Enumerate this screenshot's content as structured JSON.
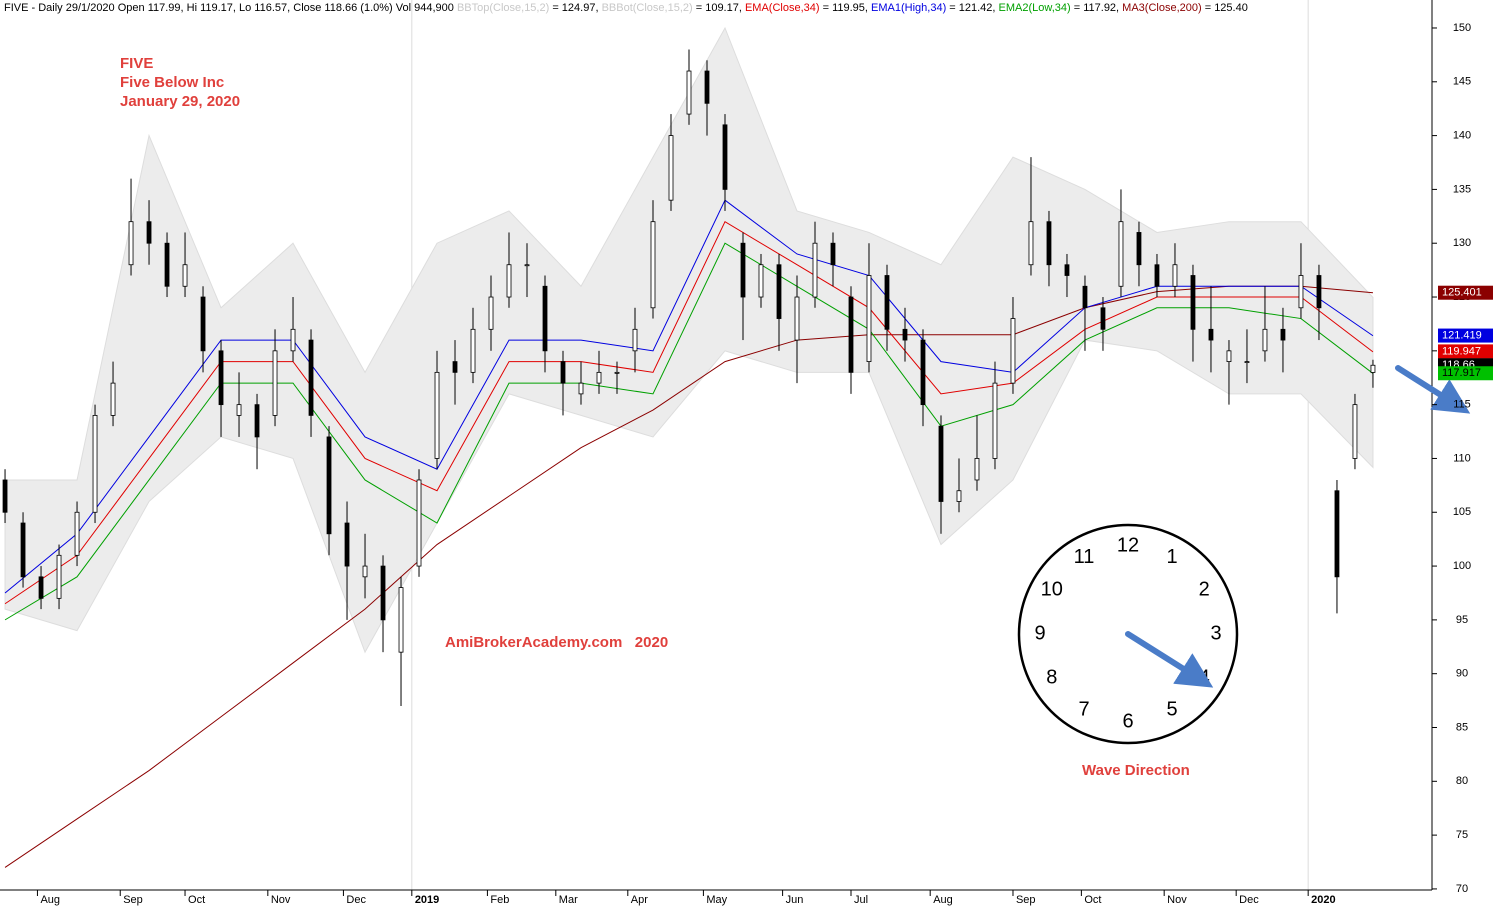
{
  "chart_data": {
    "type": "candlestick",
    "header": [
      {
        "text": "FIVE - Daily 29/1/2020 Open 117.99, Hi 119.17, Lo 116.57, Close 118.66 (1.0%) Vol 944,900 ",
        "color": "#000000"
      },
      {
        "text": "BBTop(Close,15,2)",
        "color": "#c8c8c8"
      },
      {
        "text": " = 124.97, ",
        "color": "#000000"
      },
      {
        "text": "BBBot(Close,15,2)",
        "color": "#c8c8c8"
      },
      {
        "text": " = 109.17, ",
        "color": "#000000"
      },
      {
        "text": "EMA(Close,34)",
        "color": "#e00000"
      },
      {
        "text": " = 119.95, ",
        "color": "#000000"
      },
      {
        "text": "EMA1(High,34)",
        "color": "#0000e0"
      },
      {
        "text": " = 121.42, ",
        "color": "#000000"
      },
      {
        "text": "EMA2(Low,34)",
        "color": "#00a000"
      },
      {
        "text": " = 117.92, ",
        "color": "#000000"
      },
      {
        "text": "MA3(Close,200)",
        "color": "#8b0000"
      },
      {
        "text": " = 125.40",
        "color": "#000000"
      }
    ],
    "annotations": {
      "symbol": "FIVE",
      "company": "Five Below Inc",
      "date": "January 29, 2020",
      "watermark": "AmiBrokerAcademy.com   2020",
      "wave": "Wave Direction",
      "color": "#e0403c"
    },
    "clock": [
      "12",
      "1",
      "2",
      "3",
      "4",
      "5",
      "6",
      "7",
      "8",
      "9",
      "10",
      "11"
    ],
    "xlim": [
      -1.4,
      396.4
    ],
    "ylim": [
      69.9,
      152.6
    ],
    "yticks": [
      70,
      75,
      80,
      85,
      90,
      95,
      100,
      105,
      110,
      115,
      120,
      125,
      130,
      135,
      140,
      145,
      150
    ],
    "xticks": [
      {
        "value": 9,
        "label": "Aug"
      },
      {
        "value": 32,
        "label": "Sep"
      },
      {
        "value": 50,
        "label": "Oct"
      },
      {
        "value": 73,
        "label": "Nov"
      },
      {
        "value": 94,
        "label": "Dec"
      },
      {
        "value": 113,
        "label": "2019",
        "major": true
      },
      {
        "value": 134,
        "label": "Feb"
      },
      {
        "value": 153,
        "label": "Mar"
      },
      {
        "value": 173,
        "label": "Apr"
      },
      {
        "value": 194,
        "label": "May"
      },
      {
        "value": 216,
        "label": "Jun"
      },
      {
        "value": 235,
        "label": "Jul"
      },
      {
        "value": 257,
        "label": "Aug"
      },
      {
        "value": 280,
        "label": "Sep"
      },
      {
        "value": 299,
        "label": "Oct"
      },
      {
        "value": 322,
        "label": "Nov"
      },
      {
        "value": 342,
        "label": "Dec"
      },
      {
        "value": 362,
        "label": "2020",
        "major": true
      }
    ],
    "candles": {
      "x": [
        0,
        5,
        10,
        15,
        20,
        25,
        30,
        35,
        40,
        45,
        50,
        55,
        60,
        65,
        70,
        75,
        80,
        85,
        90,
        95,
        100,
        105,
        110,
        115,
        120,
        125,
        130,
        135,
        140,
        145,
        150,
        155,
        160,
        165,
        170,
        175,
        180,
        185,
        190,
        195,
        200,
        205,
        210,
        215,
        220,
        225,
        230,
        235,
        240,
        245,
        250,
        255,
        260,
        265,
        270,
        275,
        280,
        285,
        290,
        295,
        300,
        305,
        310,
        315,
        320,
        325,
        330,
        335,
        340,
        345,
        350,
        355,
        360,
        365,
        370,
        375,
        380
      ],
      "open": [
        108,
        104,
        99,
        97,
        101,
        105,
        114,
        128,
        132,
        130,
        126,
        125,
        120,
        114,
        115,
        114,
        120,
        121,
        112,
        104,
        99,
        100,
        92,
        100,
        110,
        119,
        118,
        122,
        125,
        128,
        126,
        119,
        116,
        117,
        118,
        120,
        124,
        134,
        142,
        146,
        141,
        130,
        125,
        128,
        121,
        125,
        130,
        125,
        119,
        127,
        122,
        121,
        113,
        106,
        108,
        110,
        117,
        128,
        132,
        128,
        126,
        124,
        126,
        131,
        128,
        126,
        127,
        122,
        119,
        119,
        120,
        122,
        124,
        127,
        107,
        110,
        117.99
      ],
      "high": [
        109,
        105,
        100,
        102,
        106,
        115,
        119,
        136,
        134,
        131,
        131,
        126,
        121,
        118,
        116,
        122,
        125,
        122,
        113,
        106,
        103,
        101,
        99,
        109,
        120,
        121,
        124,
        127,
        131,
        130,
        127,
        120,
        119,
        120,
        119,
        124,
        134,
        142,
        148,
        147,
        142,
        131,
        129,
        129,
        127,
        132,
        131,
        126,
        130,
        128,
        124,
        122,
        114,
        110,
        114,
        119,
        125,
        138,
        133,
        129,
        127,
        125,
        135,
        132,
        129,
        130,
        128,
        126,
        121,
        122,
        126,
        124,
        130,
        128,
        108,
        116,
        119.17
      ],
      "low": [
        104,
        98,
        96,
        96,
        100,
        104,
        113,
        127,
        128,
        125,
        125,
        118,
        112,
        112,
        109,
        113,
        119,
        112,
        101,
        95,
        97,
        92,
        87,
        99,
        109,
        115,
        117,
        120,
        124,
        125,
        118,
        114,
        115,
        116,
        116,
        118,
        123,
        133,
        141,
        140,
        133,
        121,
        124,
        120,
        117,
        124,
        126,
        116,
        118,
        120,
        119,
        113,
        103,
        105,
        107,
        109,
        116,
        127,
        126,
        125,
        120,
        120,
        125,
        126,
        125,
        125,
        119,
        118,
        115,
        117,
        119,
        118,
        123,
        121,
        95.6,
        109,
        116.57
      ],
      "close": [
        105,
        99,
        97,
        101,
        105,
        114,
        117,
        132,
        130,
        126,
        128,
        120,
        115,
        115,
        112,
        120,
        122,
        114,
        103,
        100,
        100,
        95,
        98,
        108,
        118,
        118,
        122,
        125,
        128,
        128,
        120,
        117,
        117,
        118,
        118,
        122,
        132,
        140,
        146,
        143,
        135,
        125,
        128,
        123,
        125,
        130,
        128,
        118,
        127,
        122,
        121,
        115,
        106,
        107,
        110,
        117,
        123,
        132,
        128,
        127,
        124,
        122,
        132,
        128,
        126,
        128,
        122,
        121,
        120,
        119,
        122,
        121,
        127,
        124,
        99,
        115,
        118.66
      ],
      "color": "#000000"
    },
    "line_x": [
      0,
      20,
      40,
      60,
      80,
      100,
      120,
      140,
      160,
      180,
      200,
      220,
      240,
      260,
      280,
      300,
      320,
      340,
      360,
      380
    ],
    "band": {
      "color": "#ececec",
      "upper": [
        108,
        108,
        140,
        124,
        130,
        118,
        130,
        133,
        126,
        138,
        150,
        133,
        131,
        128,
        138,
        135,
        131,
        132,
        132,
        124.97
      ],
      "lower": [
        96,
        94,
        106,
        112,
        110,
        92,
        104,
        116,
        114,
        112,
        120,
        118,
        118,
        102,
        108,
        121,
        120,
        116,
        116,
        109.17
      ]
    },
    "series": [
      {
        "color": "#8b0000",
        "values": [
          72,
          76.5,
          81,
          86,
          91,
          96,
          102,
          106.5,
          111,
          114.5,
          119,
          121,
          121.5,
          121.5,
          121.5,
          124,
          125.5,
          126,
          126,
          125.4
        ]
      },
      {
        "color": "#0000e0",
        "values": [
          97.5,
          103,
          112,
          121,
          121,
          112,
          109,
          121,
          121,
          120,
          134,
          129,
          127,
          119,
          118,
          124,
          126,
          126,
          126,
          121.4
        ]
      },
      {
        "color": "#e00000",
        "values": [
          96.5,
          101,
          110,
          119,
          119,
          110,
          107,
          119,
          119,
          118,
          132,
          128,
          124,
          116,
          117,
          122,
          125,
          125,
          125,
          119.9
        ]
      },
      {
        "color": "#00a000",
        "values": [
          95,
          99,
          108,
          117,
          117,
          108,
          104,
          117,
          117,
          116,
          130,
          126,
          122,
          113,
          115,
          121,
          124,
          124,
          123,
          117.9
        ]
      }
    ],
    "price_tags": [
      {
        "value": 125.401,
        "color": "#8b0000",
        "text_color": "#ffffff"
      },
      {
        "value": 121.419,
        "color": "#0000e0",
        "text_color": "#ffffff"
      },
      {
        "value": 119.947,
        "color": "#e00000",
        "text_color": "#ffffff"
      },
      {
        "value": 118.66,
        "color": "#000000",
        "text_color": "#ffffff"
      },
      {
        "value": 117.917,
        "color": "#00c000",
        "text_color": "#000000"
      }
    ]
  }
}
